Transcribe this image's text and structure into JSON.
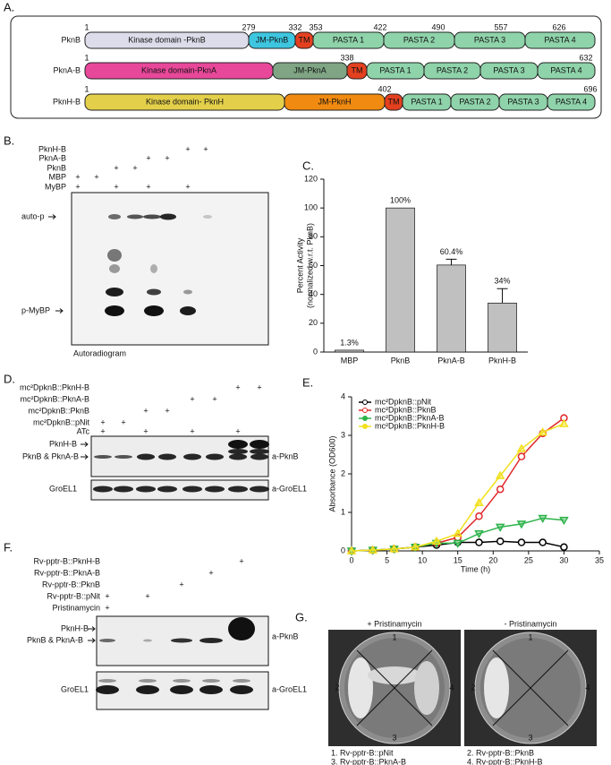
{
  "panel_labels": {
    "a": "A.",
    "b": "B.",
    "c": "C.",
    "d": "D.",
    "e": "E.",
    "f": "F.",
    "g": "G."
  },
  "panel_a": {
    "constructs": [
      {
        "name": "PknB",
        "domains": [
          "Kinase domain -PknB",
          "JM-PknB",
          "TM",
          "PASTA 1",
          "PASTA 2",
          "PASTA 3",
          "PASTA 4"
        ],
        "positions": [
          1,
          279,
          332,
          353,
          422,
          490,
          557,
          626
        ]
      },
      {
        "name": "PknA-B",
        "domains": [
          "Kinase domain-PknA",
          "JM-PknA",
          "TM",
          "PASTA 1",
          "PASTA 2",
          "PASTA 3",
          "PASTA 4"
        ],
        "positions": [
          1,
          338,
          632
        ]
      },
      {
        "name": "PknH-B",
        "domains": [
          "Kinase domain- PknH",
          "JM-PknH",
          "TM",
          "PASTA 1",
          "PASTA 2",
          "PASTA 3",
          "PASTA 4"
        ],
        "positions": [
          1,
          402,
          696
        ]
      }
    ]
  },
  "panel_b": {
    "rows": [
      "PknH-B",
      "PknA-B",
      "PknB",
      "MBP",
      "MyBP"
    ],
    "sign": "+",
    "auto_p": "auto-p",
    "p_mybp": "p-MyBP",
    "caption": "Autoradiogram"
  },
  "panel_d": {
    "rows": [
      "mc²DpknB::PknH-B",
      "mc²DpknB::PknA-B",
      "mc²DpknB::PknB",
      "mc²DpknB::pNit",
      "ATc"
    ],
    "sign": "+",
    "band_upper": "PknH-B",
    "band_lower": "PknB & PknA-B",
    "loading": "GroEL1",
    "antibody": "a-PknB",
    "loading_antibody": "a-GroEL1"
  },
  "panel_f": {
    "rows": [
      "Rv-pptr-B::PknH-B",
      "Rv-pptr-B::PknA-B",
      "Rv-pptr-B::PknB",
      "Rv-pptr-B::pNit",
      "Pristinamycin"
    ],
    "sign": "+",
    "band_upper": "PknH-B",
    "band_lower": "PknB & PknA-B",
    "loading": "GroEL1",
    "antibody": "a-PknB",
    "loading_antibody": "a-GroEL1"
  },
  "panel_g": {
    "plus_condition": "+ Pristinamycin",
    "minus_condition": "- Pristinamycin",
    "sectors": [
      1,
      2,
      3,
      4
    ],
    "key": [
      "1. Rv-pptr-B::pNit",
      "2. Rv-pptr-B::PknB",
      "3. Rv-pptr-B::PknA-B",
      "4. Rv-pptr-B::PknH-B"
    ]
  },
  "chart_data": [
    {
      "type": "bar",
      "ylabel": "Percent Activity",
      "ylabel_note": "(normalized w.r.t. PknB)",
      "categories": [
        "MBP",
        "PknB",
        "PknA-B",
        "PknH-B"
      ],
      "values": [
        1.3,
        100,
        60.4,
        34
      ],
      "value_labels": [
        "1.3%",
        "100%",
        "60.4%",
        "34%"
      ],
      "errors": [
        0,
        0,
        4,
        10
      ],
      "color": "#c0c0c0",
      "ylim": [
        0,
        120
      ],
      "yticks": [
        0,
        20,
        40,
        60,
        80,
        100,
        120
      ]
    },
    {
      "type": "line",
      "xlabel": "Time (h)",
      "ylabel": "Absorbance (OD600)",
      "x": [
        0,
        3,
        6,
        9,
        12,
        15,
        18,
        21,
        24,
        27,
        30
      ],
      "series": [
        {
          "name": "mc²DpknB::pNit",
          "color": "#000000",
          "marker": "circle",
          "values": [
            0,
            0.02,
            0.05,
            0.1,
            0.15,
            0.22,
            0.22,
            0.25,
            0.22,
            0.22,
            0.1
          ]
        },
        {
          "name": "mc²DpknB::PknB",
          "color": "#e0282a",
          "marker": "circle",
          "values": [
            0,
            0.02,
            0.05,
            0.1,
            0.2,
            0.35,
            0.9,
            1.6,
            2.45,
            3.05,
            3.45
          ]
        },
        {
          "name": "mc²DpknB::PknA-B",
          "color": "#2db34a",
          "marker": "triangle-down",
          "values": [
            0,
            0.02,
            0.05,
            0.1,
            0.2,
            0.2,
            0.45,
            0.62,
            0.7,
            0.85,
            0.8
          ]
        },
        {
          "name": "mc²DpknB::PknH-B",
          "color": "#f2e01c",
          "marker": "triangle-up",
          "values": [
            0,
            0.02,
            0.05,
            0.1,
            0.25,
            0.45,
            1.25,
            1.95,
            2.65,
            3.08,
            3.3
          ]
        }
      ],
      "xlim": [
        0,
        35
      ],
      "xticks": [
        0,
        5,
        10,
        15,
        20,
        25,
        30,
        35
      ],
      "ylim": [
        0,
        4
      ],
      "yticks": [
        0,
        1,
        2,
        3,
        4
      ],
      "legend": "upper left"
    }
  ]
}
